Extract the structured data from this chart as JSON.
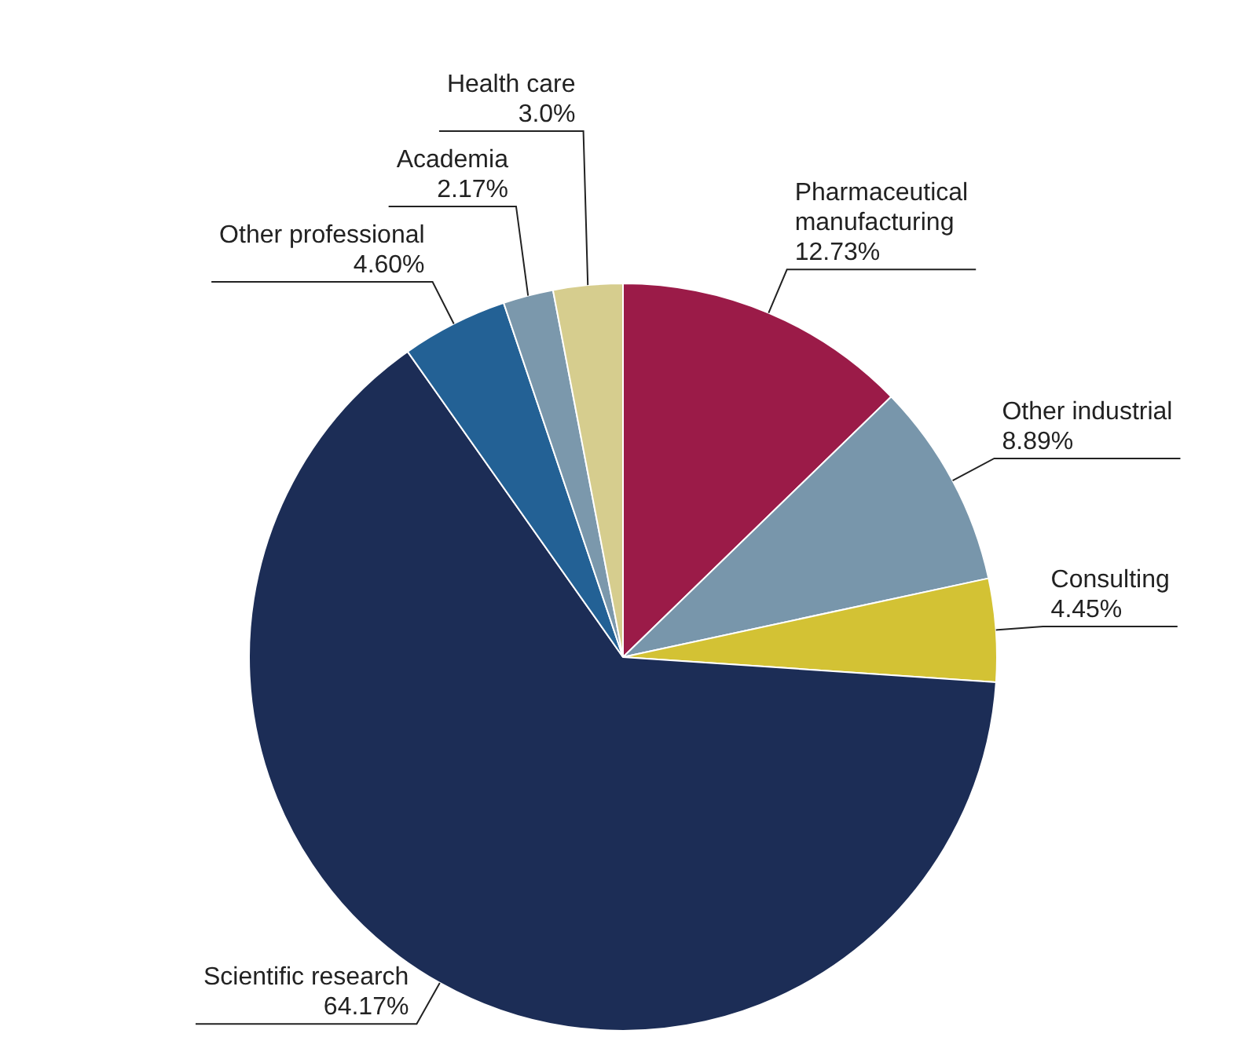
{
  "chart_data": {
    "type": "pie",
    "categories": [
      "Pharmaceutical manufacturing",
      "Other industrial",
      "Consulting",
      "Scientific research",
      "Other professional",
      "Academia",
      "Health care"
    ],
    "values": [
      12.73,
      8.89,
      4.45,
      64.17,
      4.6,
      2.17,
      3.0
    ],
    "value_labels": [
      "12.73%",
      "8.89%",
      "4.45%",
      "64.17%",
      "4.60%",
      "2.17%",
      "3.0%"
    ],
    "colors": [
      "#9b1b48",
      "#7896ab",
      "#d3c234",
      "#1c2d56",
      "#236195",
      "#7b98ac",
      "#d6cd8e"
    ],
    "legend": false
  }
}
